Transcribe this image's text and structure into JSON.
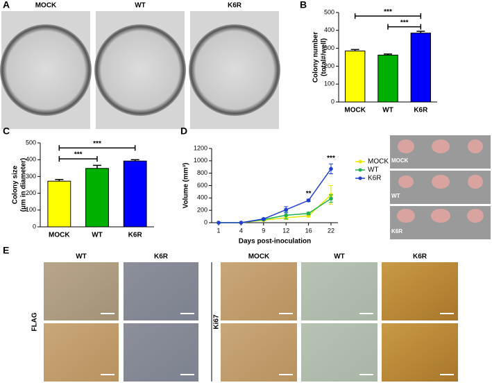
{
  "panels": {
    "letters": [
      "A",
      "B",
      "C",
      "D",
      "E"
    ]
  },
  "panel_a": {
    "labels": [
      "MOCK",
      "WT",
      "K6R"
    ]
  },
  "panel_d_photos": {
    "labels": [
      "MOCK",
      "WT",
      "K6R"
    ]
  },
  "panel_e": {
    "flag": {
      "label": "FLAG",
      "columns": [
        "WT",
        "K6R"
      ]
    },
    "ki67": {
      "label": "Ki67",
      "columns": [
        "MOCK",
        "WT",
        "K6R"
      ]
    }
  },
  "chart_data": [
    {
      "type": "bar",
      "ylabel": [
        "Colony number",
        "(total#/well)"
      ],
      "categories": [
        "MOCK",
        "WT",
        "K6R"
      ],
      "values": [
        285,
        262,
        385
      ],
      "errors": [
        8,
        6,
        10
      ],
      "colors": [
        "#ffff00",
        "#00b000",
        "#0000ff"
      ],
      "ylim": [
        0,
        500
      ],
      "yticks": [
        0,
        100,
        200,
        300,
        400,
        500
      ],
      "annotations": [
        "***",
        "***"
      ]
    },
    {
      "type": "bar",
      "ylabel": [
        "Colony size",
        "(μm in diameter)"
      ],
      "categories": [
        "MOCK",
        "WT",
        "K6R"
      ],
      "values": [
        272,
        348,
        392
      ],
      "errors": [
        10,
        18,
        8
      ],
      "colors": [
        "#ffff00",
        "#00b000",
        "#0000ff"
      ],
      "ylim": [
        0,
        500
      ],
      "yticks": [
        0,
        100,
        200,
        300,
        400,
        500
      ],
      "annotations": [
        "***",
        "***"
      ]
    },
    {
      "type": "line",
      "ylabel": [
        "Volume (mm³)"
      ],
      "xlabel": "Days post-inoculation",
      "categories": [
        "1",
        "4",
        "9",
        "12",
        "16",
        "22"
      ],
      "series": [
        {
          "name": "MOCK",
          "color": "#e6e600",
          "values": [
            0,
            0,
            40,
            80,
            110,
            450
          ],
          "errors": [
            0,
            0,
            10,
            30,
            20,
            150
          ]
        },
        {
          "name": "WT",
          "color": "#22b14c",
          "values": [
            0,
            0,
            50,
            120,
            150,
            390
          ],
          "errors": [
            0,
            0,
            10,
            60,
            20,
            60
          ]
        },
        {
          "name": "K6R",
          "color": "#1f3fd0",
          "values": [
            0,
            0,
            60,
            210,
            360,
            870
          ],
          "errors": [
            0,
            0,
            10,
            50,
            20,
            80
          ]
        }
      ],
      "ylim": [
        0,
        1200
      ],
      "yticks": [
        0,
        200,
        400,
        600,
        800,
        1000,
        1200
      ],
      "annotations": [
        "**",
        "***"
      ]
    }
  ]
}
